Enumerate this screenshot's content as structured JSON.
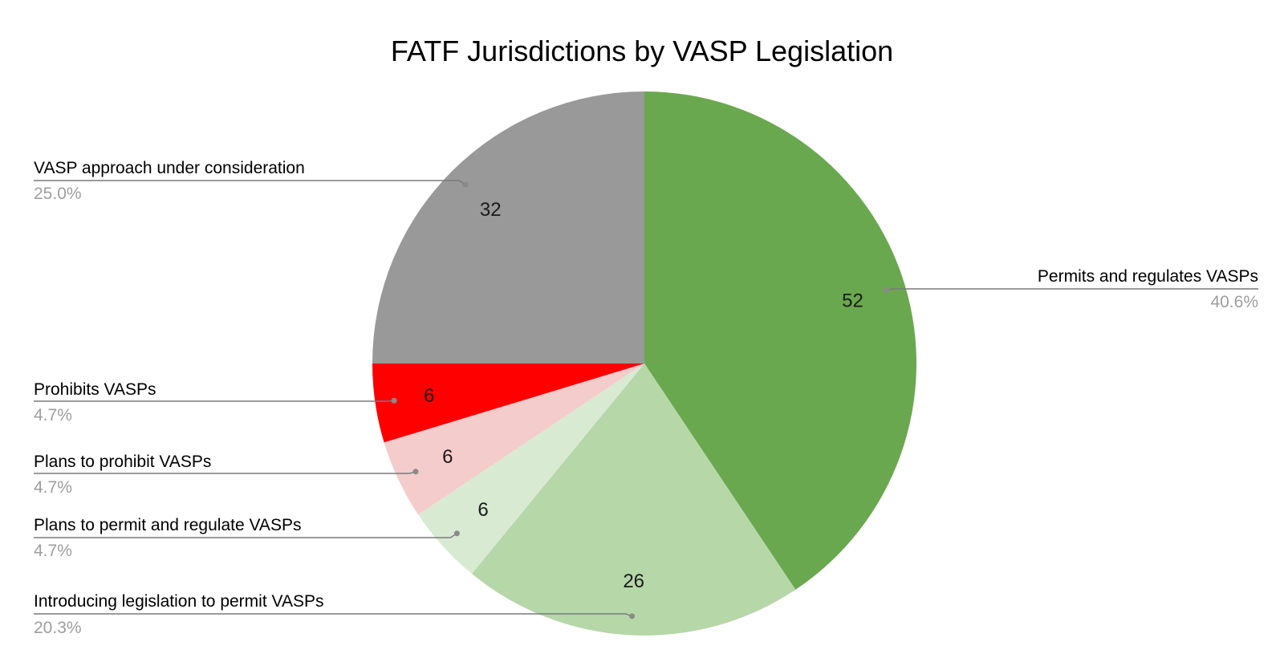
{
  "chart_data": {
    "type": "pie",
    "title": "FATF Jurisdictions by VASP Legislation",
    "slices": [
      {
        "label": "Permits and regulates VASPs",
        "value": 52,
        "percent": "40.6%",
        "color": "#6aa84f"
      },
      {
        "label": "Introducing legislation to permit VASPs",
        "value": 26,
        "percent": "20.3%",
        "color": "#b6d7a8"
      },
      {
        "label": "Plans to permit and regulate VASPs",
        "value": 6,
        "percent": "4.7%",
        "color": "#d9ead3"
      },
      {
        "label": "Plans to prohibit VASPs",
        "value": 6,
        "percent": "4.7%",
        "color": "#f4cccc"
      },
      {
        "label": "Prohibits VASPs",
        "value": 6,
        "percent": "4.7%",
        "color": "#ff0000"
      },
      {
        "label": "VASP approach under consideration",
        "value": 32,
        "percent": "25.0%",
        "color": "#999999"
      }
    ],
    "start_angle_deg": 0,
    "direction": "clockwise",
    "value_labels": "inside",
    "legend": "callouts"
  }
}
